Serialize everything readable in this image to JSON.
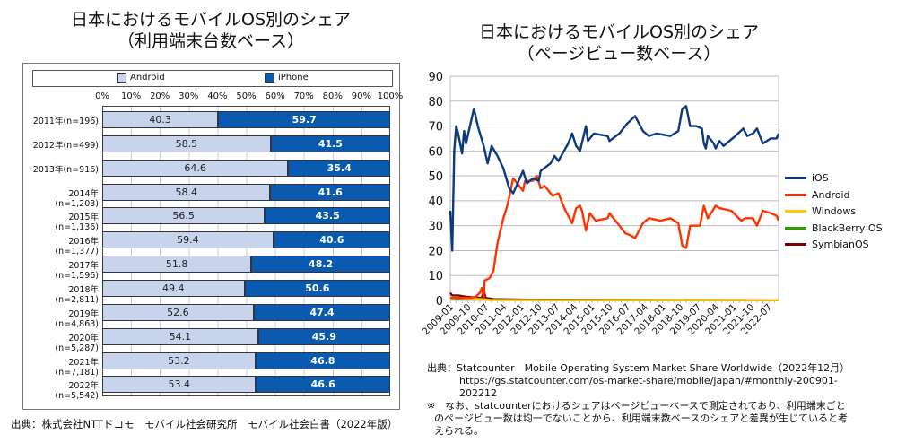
{
  "chart_data": [
    {
      "type": "bar",
      "stacked": true,
      "orientation": "horizontal",
      "title": "日本におけるモバイルOS別のシェア",
      "subtitle": "（利用端末台数ベース）",
      "legend": [
        "Android",
        "iPhone"
      ],
      "colors": {
        "Android": "#c8d3ec",
        "iPhone": "#0a5bb0"
      },
      "xticks": [
        "0%",
        "10%",
        "20%",
        "30%",
        "40%",
        "50%",
        "60%",
        "70%",
        "80%",
        "90%",
        "100%"
      ],
      "xlim": [
        0,
        100
      ],
      "categories": [
        "2011年(n=196)",
        "2012年(n=499)",
        "2013年(n=916)",
        "2014年(n=1,203)",
        "2015年(n=1,136)",
        "2016年(n=1,377)",
        "2017年(n=1,596)",
        "2018年(n=2,811)",
        "2019年(n=4,863)",
        "2020年(n=5,287)",
        "2021年(n=7,181)",
        "2022年(n=5,542)"
      ],
      "series": [
        {
          "name": "Android",
          "values": [
            "40.3",
            "58.5",
            "64.6",
            "58.4",
            "56.5",
            "59.4",
            "51.8",
            "49.4",
            "52.6",
            "54.1",
            "53.2",
            "53.4"
          ]
        },
        {
          "name": "iPhone",
          "values": [
            "59.7",
            "41.5",
            "35.4",
            "41.6",
            "43.5",
            "40.6",
            "48.2",
            "50.6",
            "47.4",
            "45.9",
            "46.8",
            "46.6"
          ]
        }
      ],
      "source": "出典：株式会社NTTドコモ　モバイル社会研究所　モバイル社会白書（2022年版）"
    },
    {
      "type": "line",
      "title": "日本におけるモバイルOS別のシェア",
      "subtitle": "（ページビュー数ベース）",
      "x_start": "2009-01",
      "x_months": 168,
      "ylim": [
        0,
        90
      ],
      "yticks": [
        "0",
        "10",
        "20",
        "30",
        "40",
        "50",
        "60",
        "70",
        "80",
        "90"
      ],
      "xticks": [
        [
          "2009-01",
          0
        ],
        [
          "2009-10",
          9
        ],
        [
          "2010-07",
          18
        ],
        [
          "2011-04",
          27
        ],
        [
          "2012-01",
          36
        ],
        [
          "2012-10",
          45
        ],
        [
          "2013-07",
          54
        ],
        [
          "2014-04",
          63
        ],
        [
          "2015-01",
          72
        ],
        [
          "2015-10",
          81
        ],
        [
          "2016-07",
          90
        ],
        [
          "2017-04",
          99
        ],
        [
          "2018-01",
          108
        ],
        [
          "2018-10",
          117
        ],
        [
          "2019-07",
          126
        ],
        [
          "2020-04",
          135
        ],
        [
          "2021-01",
          144
        ],
        [
          "2021-10",
          153
        ],
        [
          "2022-07",
          162
        ]
      ],
      "series": [
        {
          "name": "iOS",
          "color": "#0b3a82",
          "points": [
            [
              0,
              36
            ],
            [
              1,
              20
            ],
            [
              2,
              60
            ],
            [
              3,
              70
            ],
            [
              4,
              67
            ],
            [
              6,
              59
            ],
            [
              7,
              68
            ],
            [
              8,
              63
            ],
            [
              12,
              77
            ],
            [
              14,
              70
            ],
            [
              17,
              62
            ],
            [
              19,
              55
            ],
            [
              21,
              62
            ],
            [
              24,
              58
            ],
            [
              27,
              53
            ],
            [
              30,
              45
            ],
            [
              32,
              43
            ],
            [
              37,
              52
            ],
            [
              39,
              47
            ],
            [
              42,
              49
            ],
            [
              45,
              48
            ],
            [
              46,
              52
            ],
            [
              51,
              55
            ],
            [
              53,
              58
            ],
            [
              55,
              56
            ],
            [
              60,
              63
            ],
            [
              62,
              67
            ],
            [
              64,
              62
            ],
            [
              66,
              60
            ],
            [
              69,
              70
            ],
            [
              70,
              64
            ],
            [
              73,
              67
            ],
            [
              80,
              66
            ],
            [
              81,
              64
            ],
            [
              86,
              67
            ],
            [
              90,
              71
            ],
            [
              94,
              74
            ],
            [
              98,
              68
            ],
            [
              101,
              66
            ],
            [
              105,
              67
            ],
            [
              112,
              66
            ],
            [
              116,
              68
            ],
            [
              118,
              77
            ],
            [
              120,
              78
            ],
            [
              122,
              70
            ],
            [
              125,
              70
            ],
            [
              128,
              69
            ],
            [
              129,
              63
            ],
            [
              130,
              61
            ],
            [
              131,
              66
            ],
            [
              134,
              63
            ],
            [
              135,
              61
            ],
            [
              137,
              64
            ],
            [
              139,
              62
            ],
            [
              142,
              64
            ],
            [
              145,
              66
            ],
            [
              149,
              69
            ],
            [
              151,
              66
            ],
            [
              154,
              67
            ],
            [
              156,
              69
            ],
            [
              159,
              63
            ],
            [
              163,
              65
            ],
            [
              166,
              65
            ],
            [
              167,
              67
            ]
          ]
        },
        {
          "name": "Android",
          "color": "#ff3300",
          "points": [
            [
              0,
              1
            ],
            [
              5,
              1
            ],
            [
              10,
              1
            ],
            [
              13,
              1.5
            ],
            [
              15,
              3
            ],
            [
              16,
              5
            ],
            [
              17,
              1
            ],
            [
              17.5,
              8
            ],
            [
              20,
              9
            ],
            [
              22,
              12
            ],
            [
              24,
              23
            ],
            [
              27,
              33
            ],
            [
              29,
              38
            ],
            [
              32,
              49
            ],
            [
              37,
              44
            ],
            [
              38,
              48
            ],
            [
              42,
              48
            ],
            [
              44,
              50
            ],
            [
              46,
              45
            ],
            [
              48,
              46
            ],
            [
              52,
              42
            ],
            [
              55,
              43
            ],
            [
              58,
              37
            ],
            [
              62,
              31
            ],
            [
              64,
              37
            ],
            [
              66,
              38
            ],
            [
              67,
              36
            ],
            [
              69,
              28
            ],
            [
              71,
              35
            ],
            [
              74,
              32
            ],
            [
              80,
              33
            ],
            [
              81,
              35
            ],
            [
              86,
              30
            ],
            [
              89,
              27
            ],
            [
              92,
              26
            ],
            [
              94,
              25
            ],
            [
              98,
              31
            ],
            [
              101,
              33
            ],
            [
              107,
              32
            ],
            [
              112,
              33
            ],
            [
              116,
              31
            ],
            [
              118,
              22
            ],
            [
              120,
              21
            ],
            [
              122,
              30
            ],
            [
              127,
              30
            ],
            [
              129,
              38
            ],
            [
              131,
              33
            ],
            [
              135,
              38
            ],
            [
              137,
              37
            ],
            [
              143,
              36
            ],
            [
              148,
              32
            ],
            [
              150,
              33
            ],
            [
              154,
              33
            ],
            [
              156,
              30
            ],
            [
              159,
              36
            ],
            [
              163,
              35
            ],
            [
              166,
              34
            ],
            [
              167,
              32
            ]
          ]
        },
        {
          "name": "Windows",
          "color": "#ffcc00",
          "points": [
            [
              0,
              0.5
            ],
            [
              3,
              1
            ],
            [
              8,
              0.8
            ],
            [
              14,
              0.5
            ],
            [
              20,
              0.2
            ],
            [
              167,
              0.1
            ]
          ]
        },
        {
          "name": "BlackBerry OS",
          "color": "#339900",
          "points": [
            [
              0,
              0.8
            ],
            [
              5,
              0.6
            ],
            [
              10,
              0.8
            ],
            [
              16,
              0.6
            ],
            [
              20,
              0.2
            ],
            [
              167,
              0.05
            ]
          ]
        },
        {
          "name": "SymbianOS",
          "color": "#800000",
          "points": [
            [
              0,
              3
            ],
            [
              1,
              2
            ],
            [
              4,
              2
            ],
            [
              8,
              1.5
            ],
            [
              12,
              1.2
            ],
            [
              16,
              1
            ],
            [
              17,
              4
            ],
            [
              18,
              1
            ],
            [
              22,
              0.5
            ],
            [
              40,
              0.3
            ],
            [
              167,
              0.1
            ]
          ]
        }
      ],
      "source_label": "出典：",
      "source": "Statcounter　Mobile Operating System Market Share Worldwide（2022年12月）",
      "url": "https://gs.statcounter.com/os-market-share/mobile/japan/#monthly-200901-",
      "url2": "202212",
      "note": "※　なお、statcounterにおけるシェアはページビューベースで測定されており、利用端末ごと",
      "note2": "のページビュー数は均一でないことから、利用端末数ベースのシェアと差異が生じていると考",
      "note3": "えられる。"
    }
  ]
}
